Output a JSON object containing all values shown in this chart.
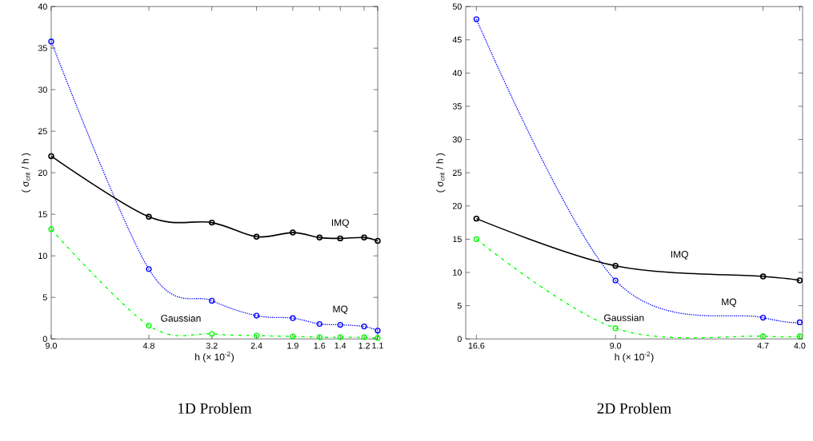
{
  "chart_data": [
    {
      "type": "line",
      "title": "1D Problem",
      "xlabel": "h (× 10$^{-2}$)",
      "ylabel": "( σ$_{crit}$ / h )",
      "log": "x",
      "marker": "circle",
      "grid": false,
      "legend": false,
      "x": [
        9.0,
        4.8,
        3.2,
        2.4,
        1.9,
        1.6,
        1.4,
        1.2,
        1.1
      ],
      "xlim": [
        9.0,
        1.1
      ],
      "ylim": [
        0,
        40
      ],
      "xticks": [
        {
          "value": 9.0,
          "label": "9.0"
        },
        {
          "value": 4.8,
          "label": "4.8"
        },
        {
          "value": 3.2,
          "label": "3.2"
        },
        {
          "value": 2.4,
          "label": "2.4"
        },
        {
          "value": 1.9,
          "label": "1.9"
        },
        {
          "value": 1.6,
          "label": "1.6"
        },
        {
          "value": 1.4,
          "label": "1.4"
        },
        {
          "value": 1.2,
          "label": "1.2"
        },
        {
          "value": 1.1,
          "label": "1.1"
        }
      ],
      "yticks": [
        0,
        5,
        10,
        15,
        20,
        25,
        30,
        35,
        40
      ],
      "series": [
        {
          "name": "MQ",
          "color": "#0000ff",
          "line_style": "dotted",
          "values": [
            35.8,
            8.4,
            4.6,
            2.8,
            2.5,
            1.8,
            1.7,
            1.5,
            1.0
          ]
        },
        {
          "name": "IMQ",
          "color": "#000000",
          "line_style": "solid",
          "values": [
            22.0,
            14.7,
            14.0,
            12.3,
            12.8,
            12.2,
            12.1,
            12.2,
            11.8
          ]
        },
        {
          "name": "Gaussian",
          "color": "#00ff00",
          "line_style": "dashed",
          "values": [
            13.2,
            1.6,
            0.6,
            0.4,
            0.3,
            0.2,
            0.2,
            0.2,
            0.1
          ]
        }
      ]
    },
    {
      "type": "line",
      "title": "2D Problem",
      "xlabel": "h (× 10$^{-2}$)",
      "ylabel": "( σ$_{crit}$ / h )",
      "log": "x",
      "marker": "circle",
      "grid": false,
      "legend": false,
      "x": [
        16.6,
        9.0,
        4.7,
        4.0
      ],
      "xlim": [
        17.4,
        3.95
      ],
      "ylim": [
        0,
        50
      ],
      "xticks": [
        {
          "value": 16.6,
          "label": "16.6"
        },
        {
          "value": 9.0,
          "label": "9.0"
        },
        {
          "value": 4.7,
          "label": "4.7"
        },
        {
          "value": 4.0,
          "label": "4.0"
        }
      ],
      "yticks": [
        0,
        5,
        10,
        15,
        20,
        25,
        30,
        35,
        40,
        45,
        50
      ],
      "series": [
        {
          "name": "MQ",
          "color": "#0000ff",
          "line_style": "dotted",
          "values": [
            48.1,
            8.8,
            3.2,
            2.5
          ]
        },
        {
          "name": "IMQ",
          "color": "#000000",
          "line_style": "solid",
          "values": [
            18.1,
            11.0,
            9.4,
            8.8
          ]
        },
        {
          "name": "Gaussian",
          "color": "#00ff00",
          "line_style": "dashed",
          "values": [
            15.0,
            1.6,
            0.4,
            0.4
          ]
        }
      ]
    }
  ]
}
